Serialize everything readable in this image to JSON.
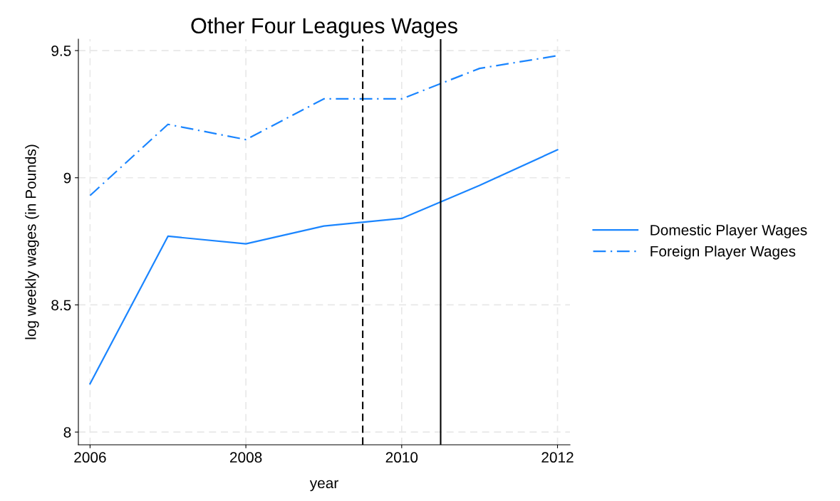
{
  "chart_data": {
    "type": "line",
    "title": "Other Four Leagues Wages",
    "xlabel": "year",
    "ylabel": "log weekly wages (in Pounds)",
    "x": [
      2006,
      2007,
      2008,
      2009,
      2010,
      2011,
      2012
    ],
    "series": [
      {
        "name": "Domestic Player Wages",
        "color": "#1a85ff",
        "line_style": "solid",
        "values": [
          8.19,
          8.77,
          8.74,
          8.81,
          8.84,
          8.97,
          9.11
        ]
      },
      {
        "name": "Foreign Player Wages",
        "color": "#1a85ff",
        "line_style": "dashdot",
        "values": [
          8.93,
          9.21,
          9.15,
          9.31,
          9.31,
          9.43,
          9.48
        ]
      }
    ],
    "xlim": [
      2005.85,
      2012.16
    ],
    "xticks": [
      2006,
      2008,
      2010,
      2012
    ],
    "ylim": [
      7.95,
      9.545
    ],
    "yticks": [
      8,
      8.5,
      9,
      9.5
    ],
    "ref_lines": [
      {
        "axis": "x",
        "value": 2009.5,
        "color": "#000000",
        "line_style": "dashed"
      },
      {
        "axis": "x",
        "value": 2010.5,
        "color": "#000000",
        "line_style": "solid"
      }
    ],
    "grid": true,
    "legend": "right"
  }
}
